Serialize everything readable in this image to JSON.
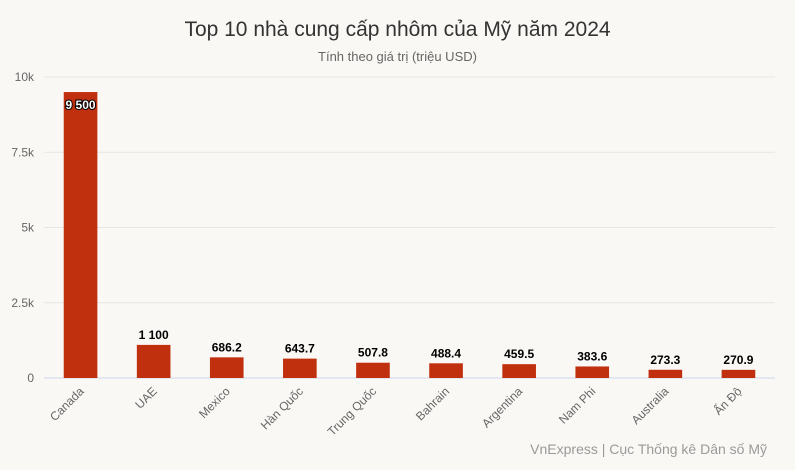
{
  "chart_data": {
    "type": "bar",
    "title": "Top 10 nhà cung cấp nhôm của Mỹ năm 2024",
    "subtitle": "Tính theo giá trị (triệu USD)",
    "source": "VnExpress | Cục Thống kê Dân số Mỹ",
    "categories": [
      "Canada",
      "UAE",
      "Mexico",
      "Hàn Quốc",
      "Trung Quốc",
      "Bahrain",
      "Argentina",
      "Nam Phi",
      "Australia",
      "Ấn Độ"
    ],
    "values": [
      9500,
      1100,
      686.2,
      643.7,
      507.8,
      488.4,
      459.5,
      383.6,
      273.3,
      270.9
    ],
    "data_labels": [
      "9 500",
      "1 100",
      "686.2",
      "643.7",
      "507.8",
      "488.4",
      "459.5",
      "383.6",
      "273.3",
      "270.9"
    ],
    "ylim": [
      0,
      10000
    ],
    "yticks": [
      0,
      2500,
      5000,
      7500,
      10000
    ],
    "ytick_labels": [
      "0",
      "2.5k",
      "5k",
      "7.5k",
      "10k"
    ],
    "grid": true,
    "bar_color": "#c0300e"
  }
}
